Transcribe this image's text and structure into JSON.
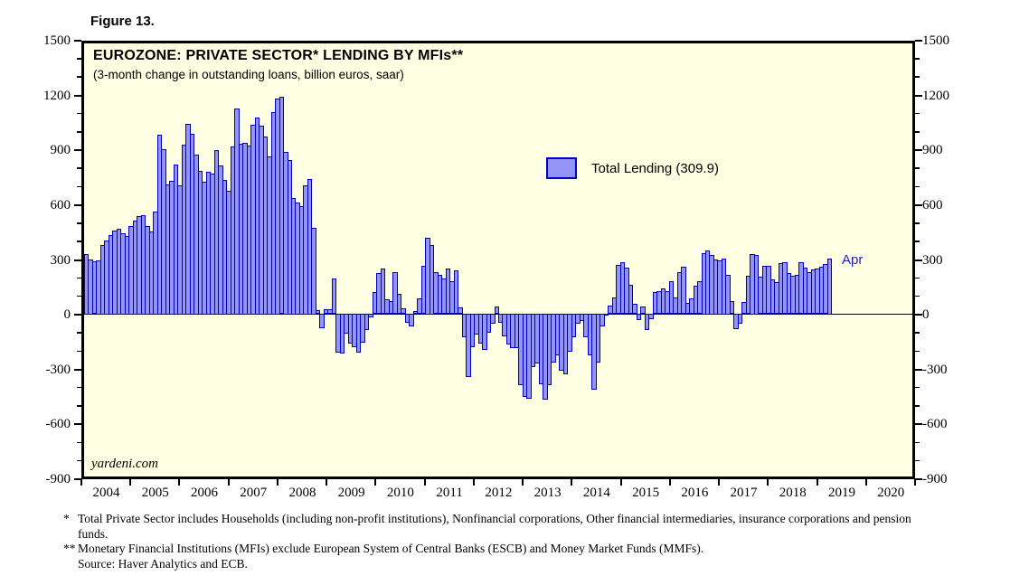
{
  "figure_label": "Figure 13.",
  "chart": {
    "title": "EUROZONE: PRIVATE SECTOR* LENDING BY MFIs**",
    "subtitle": "(3-month change in outstanding loans, billion euros, saar)",
    "legend_label": "Total Lending (309.9)",
    "annotation_label": "Apr",
    "watermark": "yardeni.com"
  },
  "colors": {
    "plot_background": "#FFFFE3",
    "bar_fill": "#9494F6",
    "bar_border": "#0000BB",
    "annotation_blue": "#2222CC",
    "frame": "#000000"
  },
  "footnotes": [
    {
      "marker": "*",
      "text": "Total Private Sector includes Households (including non-profit institutions), Nonfinancial corporations, Other financial intermediaries, insurance corporations and pension funds."
    },
    {
      "marker": "**",
      "text": "Monetary Financial Institutions (MFIs) exclude European System of Central Banks (ESCB) and Money Market Funds (MMFs)."
    },
    {
      "marker": "",
      "text": "Source: Haver Analytics and ECB."
    }
  ],
  "chart_data": {
    "type": "bar",
    "title": "EUROZONE: PRIVATE SECTOR* LENDING BY MFIs**",
    "subtitle": "(3-month change in outstanding loans, billion euros, saar)",
    "unit": "billion euros, saar",
    "frequency": "monthly",
    "x_start": "2004-01",
    "x_end": "2019-04",
    "x_axis_years": [
      2004,
      2005,
      2006,
      2007,
      2008,
      2009,
      2010,
      2011,
      2012,
      2013,
      2014,
      2015,
      2016,
      2017,
      2018,
      2019,
      2020
    ],
    "x_axis_span_years": 17,
    "ylim": [
      -900,
      1500
    ],
    "y_major_ticks": [
      1500,
      1200,
      900,
      600,
      300,
      0,
      -300,
      -600,
      -900
    ],
    "y_minor_tick_interval": 100,
    "grid": "off",
    "legend_position": "upper-middle",
    "series": [
      {
        "name": "Total Lending",
        "latest_point_label": "Apr",
        "latest_value": 309.9,
        "values": [
          335,
          305,
          293,
          300,
          385,
          410,
          440,
          465,
          475,
          450,
          435,
          490,
          520,
          545,
          550,
          490,
          460,
          570,
          995,
          915,
          720,
          740,
          830,
          715,
          940,
          1055,
          1000,
          885,
          795,
          735,
          790,
          780,
          910,
          825,
          745,
          685,
          930,
          1140,
          945,
          950,
          935,
          1050,
          1090,
          1045,
          985,
          875,
          1120,
          1195,
          1205,
          900,
          855,
          645,
          620,
          600,
          715,
          750,
          480,
          20,
          -80,
          25,
          25,
          195,
          -215,
          -220,
          -110,
          -165,
          -185,
          -215,
          -160,
          -90,
          -20,
          120,
          225,
          250,
          80,
          70,
          230,
          110,
          30,
          -50,
          -70,
          15,
          85,
          265,
          425,
          385,
          230,
          215,
          195,
          250,
          180,
          240,
          35,
          -130,
          -350,
          -185,
          -115,
          -165,
          -200,
          -105,
          -55,
          40,
          -50,
          -125,
          -170,
          -190,
          -190,
          -395,
          -460,
          -470,
          -295,
          -275,
          -390,
          -475,
          -395,
          -270,
          -230,
          -315,
          -335,
          -210,
          -130,
          -55,
          -40,
          -130,
          -230,
          -420,
          -270,
          -70,
          -5,
          45,
          90,
          270,
          285,
          255,
          160,
          55,
          -35,
          40,
          -90,
          -30,
          120,
          125,
          140,
          125,
          180,
          90,
          230,
          260,
          60,
          85,
          155,
          180,
          340,
          355,
          330,
          305,
          300,
          310,
          218,
          70,
          -85,
          -55,
          65,
          210,
          335,
          330,
          205,
          265,
          265,
          190,
          175,
          280,
          285,
          225,
          210,
          215,
          285,
          255,
          230,
          245,
          250,
          262,
          278,
          309.9
        ]
      }
    ]
  }
}
